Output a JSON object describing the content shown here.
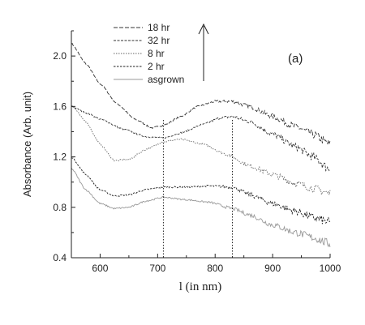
{
  "chart_data": {
    "type": "line",
    "panel_label": "(a)",
    "xlabel": "l  (in nm)",
    "ylabel": "Absorbance (Arb. unit)",
    "xlim": [
      550,
      1000
    ],
    "ylim": [
      0.4,
      2.2
    ],
    "x_ticks": [
      600,
      700,
      800,
      900,
      1000
    ],
    "y_ticks": [
      0.4,
      0.8,
      1.2,
      1.6,
      2.0
    ],
    "y_tick_labels": [
      "0.4",
      "0.8",
      "1.2",
      "1.6",
      "2.0"
    ],
    "markers_x": [
      710,
      830
    ],
    "legend_position": "top-left",
    "arrow_direction": "up",
    "series": [
      {
        "name": "18 hr",
        "color": "#333333",
        "dash": "5,2",
        "x": [
          550,
          575,
          600,
          630,
          660,
          690,
          710,
          740,
          770,
          800,
          830,
          860,
          900,
          940,
          970,
          1000
        ],
        "y": [
          2.1,
          1.94,
          1.78,
          1.62,
          1.5,
          1.43,
          1.45,
          1.52,
          1.6,
          1.64,
          1.64,
          1.6,
          1.52,
          1.44,
          1.38,
          1.3
        ]
      },
      {
        "name": "32 hr",
        "color": "#333333",
        "dash": "3,1.5",
        "x": [
          550,
          575,
          600,
          640,
          680,
          710,
          740,
          780,
          810,
          830,
          860,
          900,
          940,
          970,
          1000
        ],
        "y": [
          1.6,
          1.55,
          1.5,
          1.42,
          1.36,
          1.35,
          1.39,
          1.46,
          1.51,
          1.52,
          1.48,
          1.38,
          1.28,
          1.2,
          1.1
        ]
      },
      {
        "name": "8 hr",
        "color": "#666666",
        "dash": "1.5,1.5",
        "x": [
          550,
          575,
          600,
          625,
          650,
          680,
          710,
          740,
          780,
          820,
          860,
          900,
          940,
          970,
          1000
        ],
        "y": [
          1.61,
          1.48,
          1.3,
          1.17,
          1.18,
          1.26,
          1.32,
          1.34,
          1.3,
          1.22,
          1.13,
          1.06,
          0.99,
          0.95,
          0.91
        ]
      },
      {
        "name": "2 hr",
        "color": "#222222",
        "dash": "2.5,1.5",
        "x": [
          550,
          575,
          600,
          625,
          650,
          680,
          710,
          750,
          790,
          830,
          860,
          900,
          940,
          970,
          1000
        ],
        "y": [
          1.2,
          1.06,
          0.94,
          0.89,
          0.9,
          0.94,
          0.96,
          0.96,
          0.97,
          0.96,
          0.9,
          0.83,
          0.77,
          0.72,
          0.68
        ]
      },
      {
        "name": "asgrown",
        "color": "#999999",
        "dash": "",
        "x": [
          550,
          575,
          600,
          625,
          650,
          680,
          710,
          750,
          790,
          830,
          860,
          900,
          940,
          970,
          1000
        ],
        "y": [
          1.11,
          0.94,
          0.83,
          0.79,
          0.8,
          0.85,
          0.88,
          0.86,
          0.84,
          0.79,
          0.74,
          0.66,
          0.6,
          0.56,
          0.51
        ]
      }
    ]
  }
}
